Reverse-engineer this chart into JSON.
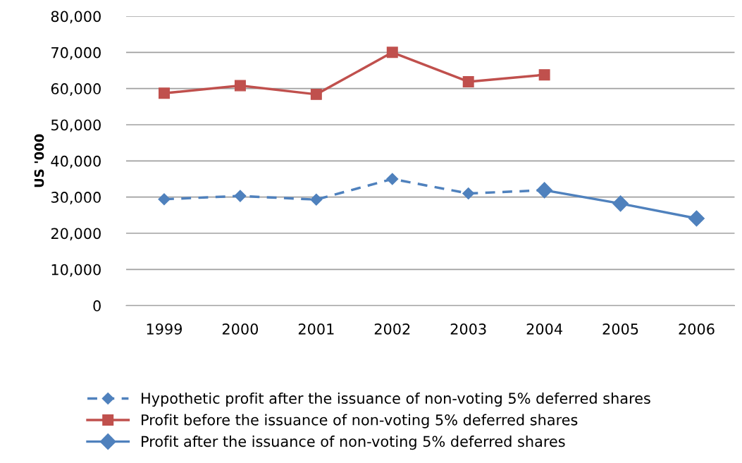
{
  "chart_data": {
    "type": "line",
    "ylabel": "US '000",
    "categories": [
      "1999",
      "2000",
      "2001",
      "2002",
      "2003",
      "2004",
      "2005",
      "2006"
    ],
    "series": [
      {
        "name": "Hypothetic profit after the issuance of non-voting 5% deferred shares",
        "color": "#4f81bd",
        "marker": "diamond",
        "line_style": "dashed",
        "values": [
          29400,
          30300,
          29300,
          35000,
          31000,
          31900,
          null,
          null
        ]
      },
      {
        "name": "Profit before the issuance of non-voting 5% deferred shares",
        "color": "#c0504d",
        "marker": "square",
        "line_style": "solid",
        "values": [
          58700,
          60800,
          58400,
          70000,
          61900,
          63800,
          null,
          null
        ]
      },
      {
        "name": "Profit after the issuance of non-voting 5% deferred shares",
        "color": "#4f81bd",
        "marker": "diamond",
        "line_style": "solid",
        "values": [
          null,
          null,
          null,
          null,
          null,
          31900,
          28200,
          24100
        ]
      }
    ],
    "ylim": [
      0,
      80000
    ],
    "yticks": [
      {
        "value": 0,
        "label": "0"
      },
      {
        "value": 10000,
        "label": "10,000"
      },
      {
        "value": 20000,
        "label": "20,000"
      },
      {
        "value": 30000,
        "label": "30,000"
      },
      {
        "value": 40000,
        "label": "40,000"
      },
      {
        "value": 50000,
        "label": "50,000"
      },
      {
        "value": 60000,
        "label": "60,000"
      },
      {
        "value": 70000,
        "label": "70,000"
      },
      {
        "value": 80000,
        "label": "80,000"
      }
    ],
    "grid": "y",
    "legend": "bottom"
  }
}
